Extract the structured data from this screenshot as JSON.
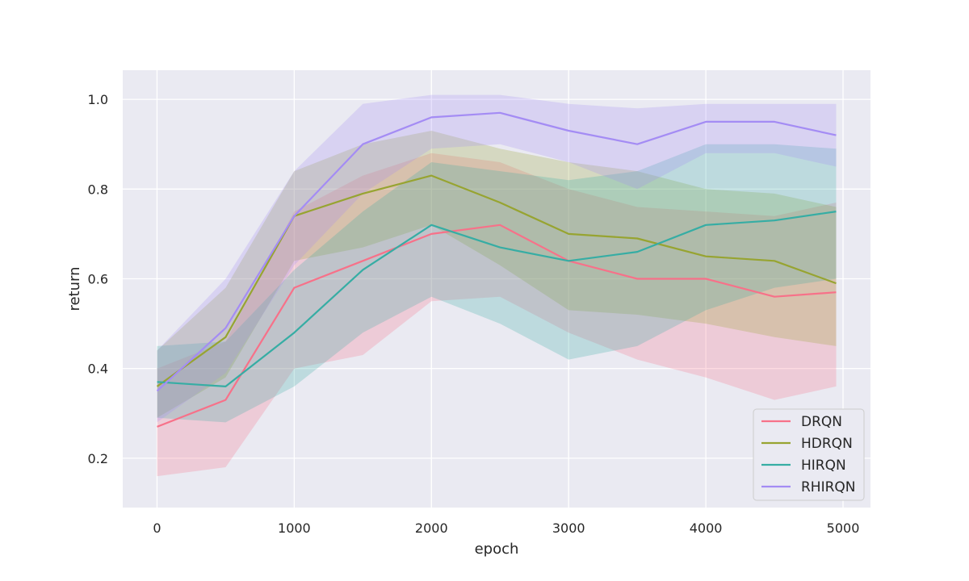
{
  "chart_data": {
    "type": "line",
    "xlabel": "epoch",
    "ylabel": "return",
    "xlim": [
      -250,
      5200
    ],
    "ylim": [
      0.09,
      1.065
    ],
    "xticks": [
      0,
      1000,
      2000,
      3000,
      4000,
      5000
    ],
    "yticks": [
      0.2,
      0.4,
      0.6,
      0.8,
      1.0
    ],
    "ytick_labels": [
      "0.2",
      "0.4",
      "0.6",
      "0.8",
      "1.0"
    ],
    "grid": true,
    "background": "#eaeaf2",
    "legend_position": "lower-right",
    "band_opacity": 0.25,
    "x": [
      0,
      500,
      1000,
      1500,
      2000,
      2500,
      3000,
      3500,
      4000,
      4500,
      4950
    ],
    "series": [
      {
        "name": "DRQN",
        "color": "#f77189",
        "values": [
          0.27,
          0.33,
          0.58,
          0.64,
          0.7,
          0.72,
          0.64,
          0.6,
          0.6,
          0.56,
          0.57
        ],
        "band_low": [
          0.16,
          0.18,
          0.4,
          0.43,
          0.55,
          0.56,
          0.48,
          0.42,
          0.38,
          0.33,
          0.36
        ],
        "band_high": [
          0.4,
          0.46,
          0.75,
          0.83,
          0.88,
          0.86,
          0.8,
          0.76,
          0.75,
          0.74,
          0.77
        ]
      },
      {
        "name": "HDRQN",
        "color": "#97a431",
        "values": [
          0.36,
          0.47,
          0.74,
          0.79,
          0.83,
          0.77,
          0.7,
          0.69,
          0.65,
          0.64,
          0.59
        ],
        "band_low": [
          0.29,
          0.38,
          0.64,
          0.67,
          0.72,
          0.63,
          0.53,
          0.52,
          0.5,
          0.47,
          0.45
        ],
        "band_high": [
          0.44,
          0.58,
          0.84,
          0.9,
          0.93,
          0.89,
          0.86,
          0.84,
          0.8,
          0.79,
          0.76
        ]
      },
      {
        "name": "HIRQN",
        "color": "#36ada4",
        "values": [
          0.37,
          0.36,
          0.48,
          0.62,
          0.72,
          0.67,
          0.64,
          0.66,
          0.72,
          0.73,
          0.75
        ],
        "band_low": [
          0.29,
          0.28,
          0.36,
          0.48,
          0.56,
          0.5,
          0.42,
          0.45,
          0.53,
          0.58,
          0.6
        ],
        "band_high": [
          0.45,
          0.46,
          0.62,
          0.75,
          0.86,
          0.84,
          0.82,
          0.84,
          0.9,
          0.9,
          0.89
        ]
      },
      {
        "name": "RHIRQN",
        "color": "#a48cf4",
        "values": [
          0.35,
          0.49,
          0.74,
          0.9,
          0.96,
          0.97,
          0.93,
          0.9,
          0.95,
          0.95,
          0.92
        ],
        "band_low": [
          0.28,
          0.39,
          0.63,
          0.79,
          0.89,
          0.9,
          0.86,
          0.8,
          0.88,
          0.88,
          0.85
        ],
        "band_high": [
          0.44,
          0.6,
          0.84,
          0.99,
          1.01,
          1.01,
          0.99,
          0.98,
          0.99,
          0.99,
          0.99
        ]
      }
    ]
  }
}
